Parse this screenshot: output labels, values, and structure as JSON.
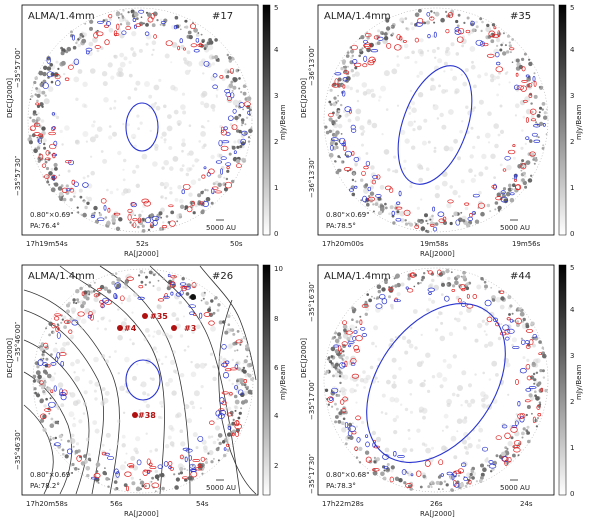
{
  "colors": {
    "red": "#e02020",
    "blue": "#2a35d0",
    "gray": "#7a7a7a",
    "contour": "#333333"
  },
  "panels": [
    {
      "id": "p17",
      "title": "ALMA/1.4mm",
      "label": "#17",
      "beam_text": "0.80\"×0.69\"",
      "pa_text": "PA:76.4°",
      "scale_text": "5000 AU",
      "xlabel": "RA[J2000]",
      "ylabel": "DEC[J2000]",
      "cbar_label": "mJy/Beam",
      "cbar_ticks": [
        "0",
        "1",
        "2",
        "3",
        "4",
        "5"
      ],
      "x_ticks": [
        "17h19m54s",
        "52s",
        "50s"
      ],
      "y_ticks": [
        "−35°57′00″",
        "−35°57′30″"
      ]
    },
    {
      "id": "p35",
      "title": "ALMA/1.4mm",
      "label": "#35",
      "beam_text": "0.80\"×0.69\"",
      "pa_text": "PA:78.5°",
      "scale_text": "5000 AU",
      "xlabel": "RA[J2000]",
      "ylabel": "DEC[J2000]",
      "cbar_label": "mJy/Beam",
      "cbar_ticks": [
        "0",
        "1",
        "2",
        "3",
        "4",
        "5"
      ],
      "x_ticks": [
        "17h20m00s",
        "19m58s",
        "19m56s"
      ],
      "y_ticks": [
        "−36°13′00″",
        "−36°13′30″"
      ]
    },
    {
      "id": "p26",
      "title": "ALMA/1.4mm",
      "label": "#26",
      "beam_text": "0.80\"×0.69\"",
      "pa_text": "PA:78.2°",
      "scale_text": "5000 AU",
      "xlabel": "RA[J2000]",
      "ylabel": "DEC[J2000]",
      "cbar_label": "mJy/Beam",
      "cbar_ticks": [
        "2",
        "4",
        "6",
        "8",
        "10"
      ],
      "x_ticks": [
        "17h20m58s",
        "56s",
        "54s"
      ],
      "y_ticks": [
        "−35°46′00″",
        "−35°46′30″"
      ],
      "source_labels": [
        "#35",
        "#4",
        "#3",
        "#38"
      ]
    },
    {
      "id": "p44",
      "title": "ALMA/1.4mm",
      "label": "#44",
      "beam_text": "0.80\"×0.68\"",
      "pa_text": "PA:78.3°",
      "scale_text": "5000 AU",
      "xlabel": "RA[J2000]",
      "ylabel": "DEC[J2000]",
      "cbar_label": "mJy/Beam",
      "cbar_ticks": [
        "0",
        "1",
        "2",
        "3",
        "4",
        "5"
      ],
      "x_ticks": [
        "17h22m28s",
        "26s",
        "24s"
      ],
      "y_ticks": [
        "−35°16′30″",
        "−35°17′00″",
        "−35°17′30″"
      ]
    }
  ]
}
